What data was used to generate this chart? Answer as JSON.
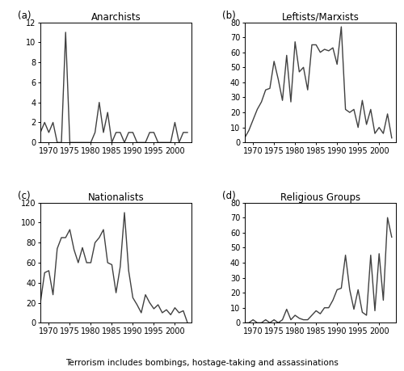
{
  "years": [
    1968,
    1969,
    1970,
    1971,
    1972,
    1973,
    1974,
    1975,
    1976,
    1977,
    1978,
    1979,
    1980,
    1981,
    1982,
    1983,
    1984,
    1985,
    1986,
    1987,
    1988,
    1989,
    1990,
    1991,
    1992,
    1993,
    1994,
    1995,
    1996,
    1997,
    1998,
    1999,
    2000,
    2001,
    2002,
    2003
  ],
  "anarchists": [
    1,
    2,
    1,
    2,
    0,
    0,
    11,
    0,
    0,
    0,
    0,
    0,
    0,
    1,
    4,
    1,
    3,
    0,
    1,
    1,
    0,
    1,
    1,
    0,
    0,
    0,
    1,
    1,
    0,
    0,
    0,
    0,
    2,
    0,
    1,
    1
  ],
  "leftists": [
    3,
    8,
    15,
    22,
    27,
    35,
    36,
    54,
    42,
    28,
    58,
    27,
    67,
    47,
    50,
    35,
    65,
    65,
    60,
    62,
    61,
    63,
    52,
    77,
    22,
    20,
    22,
    10,
    28,
    12,
    22,
    6,
    10,
    6,
    19,
    3
  ],
  "nationalists": [
    20,
    50,
    52,
    28,
    74,
    85,
    85,
    93,
    73,
    60,
    75,
    60,
    60,
    80,
    85,
    93,
    60,
    58,
    30,
    56,
    110,
    52,
    25,
    18,
    10,
    28,
    20,
    14,
    18,
    10,
    13,
    8,
    15,
    10,
    12,
    0
  ],
  "religious": [
    0,
    0,
    2,
    0,
    0,
    2,
    0,
    2,
    0,
    2,
    9,
    2,
    5,
    3,
    2,
    2,
    5,
    8,
    6,
    10,
    10,
    15,
    22,
    23,
    45,
    22,
    9,
    22,
    7,
    5,
    45,
    8,
    46,
    15,
    70,
    57
  ],
  "title_a": "Anarchists",
  "title_b": "Leftists/Marxists",
  "title_c": "Nationalists",
  "title_d": "Religious Groups",
  "label_a": "(a)",
  "label_b": "(b)",
  "label_c": "(c)",
  "label_d": "(d)",
  "ylim_a": [
    0,
    12
  ],
  "ylim_b": [
    0,
    80
  ],
  "ylim_c": [
    0,
    120
  ],
  "ylim_d": [
    0,
    80
  ],
  "yticks_a": [
    0,
    2,
    4,
    6,
    8,
    10,
    12
  ],
  "yticks_b": [
    0,
    10,
    20,
    30,
    40,
    50,
    60,
    70,
    80
  ],
  "yticks_c": [
    0,
    20,
    40,
    60,
    80,
    100,
    120
  ],
  "yticks_d": [
    0,
    10,
    20,
    30,
    40,
    50,
    60,
    70,
    80
  ],
  "xticks": [
    1970,
    1975,
    1980,
    1985,
    1990,
    1995,
    2000
  ],
  "xlim": [
    1968,
    2004
  ],
  "xlabel": "Terrorism includes bombings, hostage-taking and assassinations",
  "line_color": "#404040",
  "line_width": 1.0,
  "background_color": "#ffffff",
  "title_fontsize": 8.5,
  "tick_fontsize": 7.0,
  "label_fontsize": 8.5,
  "xlabel_fontsize": 7.5
}
